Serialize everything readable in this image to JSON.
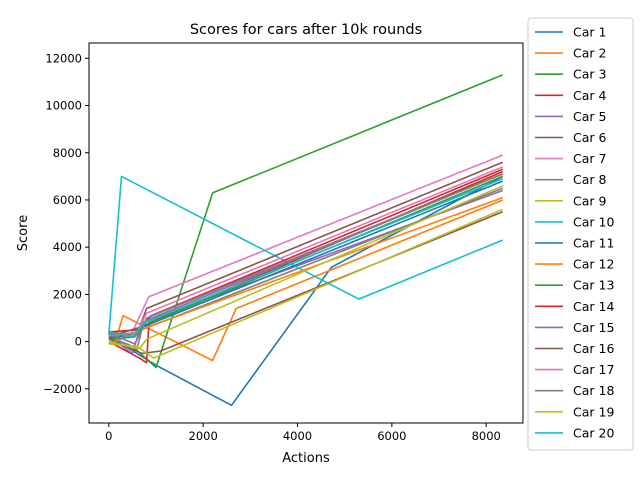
{
  "chart_data": {
    "type": "line",
    "title": "Scores for cars after 10k rounds",
    "xlabel": "Actions",
    "ylabel": "Score",
    "xlim": [
      -420,
      8780
    ],
    "ylim": [
      -3450,
      12650
    ],
    "xticks": [
      0,
      2000,
      4000,
      6000,
      8000
    ],
    "xtick_labels": [
      "0",
      "2000",
      "4000",
      "6000",
      "8000"
    ],
    "yticks": [
      -2000,
      0,
      2000,
      4000,
      6000,
      8000,
      10000,
      12000
    ],
    "ytick_labels": [
      "−2000",
      "0",
      "2000",
      "4000",
      "6000",
      "8000",
      "10000",
      "12000"
    ],
    "grid": false,
    "legend_position": "outside-right",
    "series": [
      {
        "name": "Car 1",
        "color": "#1f77b4",
        "points": [
          [
            0,
            200
          ],
          [
            350,
            -200
          ],
          [
            1000,
            -1000
          ],
          [
            2600,
            -2700
          ],
          [
            4720,
            3150
          ],
          [
            8350,
            7000
          ]
        ]
      },
      {
        "name": "Car 2",
        "color": "#ff7f0e",
        "points": [
          [
            0,
            300
          ],
          [
            200,
            400
          ],
          [
            300,
            1100
          ],
          [
            2200,
            -800
          ],
          [
            2700,
            1400
          ],
          [
            8350,
            6000
          ]
        ]
      },
      {
        "name": "Car 3",
        "color": "#2ca02c",
        "points": [
          [
            0,
            200
          ],
          [
            500,
            -200
          ],
          [
            1000,
            -1100
          ],
          [
            2200,
            6300
          ],
          [
            8350,
            11300
          ]
        ]
      },
      {
        "name": "Car 4",
        "color": "#d62728",
        "points": [
          [
            0,
            0
          ],
          [
            650,
            -700
          ],
          [
            800,
            -900
          ],
          [
            850,
            800
          ],
          [
            8350,
            7200
          ]
        ]
      },
      {
        "name": "Car 5",
        "color": "#9467bd",
        "points": [
          [
            0,
            200
          ],
          [
            500,
            -500
          ],
          [
            700,
            800
          ],
          [
            8350,
            6400
          ]
        ]
      },
      {
        "name": "Car 6",
        "color": "#8c564b",
        "points": [
          [
            0,
            100
          ],
          [
            700,
            -500
          ],
          [
            1100,
            -400
          ],
          [
            8350,
            5500
          ]
        ]
      },
      {
        "name": "Car 7",
        "color": "#e377c2",
        "points": [
          [
            0,
            300
          ],
          [
            450,
            200
          ],
          [
            850,
            1900
          ],
          [
            8350,
            7900
          ]
        ]
      },
      {
        "name": "Car 8",
        "color": "#7f7f7f",
        "points": [
          [
            0,
            200
          ],
          [
            600,
            -300
          ],
          [
            700,
            500
          ],
          [
            8350,
            6500
          ]
        ]
      },
      {
        "name": "Car 9",
        "color": "#bcbd22",
        "points": [
          [
            0,
            -100
          ],
          [
            600,
            -200
          ],
          [
            950,
            -700
          ],
          [
            8350,
            5600
          ]
        ]
      },
      {
        "name": "Car 10",
        "color": "#17becf",
        "points": [
          [
            0,
            300
          ],
          [
            270,
            7000
          ],
          [
            5300,
            1800
          ],
          [
            8350,
            4300
          ]
        ]
      },
      {
        "name": "Car 11",
        "color": "#1f77b4",
        "points": [
          [
            0,
            150
          ],
          [
            500,
            300
          ],
          [
            700,
            600
          ],
          [
            8350,
            6800
          ]
        ]
      },
      {
        "name": "Car 12",
        "color": "#ff7f0e",
        "points": [
          [
            0,
            -100
          ],
          [
            500,
            300
          ],
          [
            800,
            600
          ],
          [
            8350,
            6100
          ]
        ]
      },
      {
        "name": "Car 13",
        "color": "#2ca02c",
        "points": [
          [
            0,
            100
          ],
          [
            550,
            200
          ],
          [
            750,
            700
          ],
          [
            8350,
            7000
          ]
        ]
      },
      {
        "name": "Car 14",
        "color": "#d62728",
        "points": [
          [
            0,
            400
          ],
          [
            600,
            500
          ],
          [
            900,
            1100
          ],
          [
            8350,
            7300
          ]
        ]
      },
      {
        "name": "Car 15",
        "color": "#9467bd",
        "points": [
          [
            0,
            350
          ],
          [
            550,
            -100
          ],
          [
            800,
            900
          ],
          [
            8350,
            7100
          ]
        ]
      },
      {
        "name": "Car 16",
        "color": "#8c564b",
        "points": [
          [
            0,
            200
          ],
          [
            650,
            600
          ],
          [
            800,
            1400
          ],
          [
            8350,
            7600
          ]
        ]
      },
      {
        "name": "Car 17",
        "color": "#e377c2",
        "points": [
          [
            0,
            250
          ],
          [
            600,
            400
          ],
          [
            800,
            1200
          ],
          [
            8350,
            7400
          ]
        ]
      },
      {
        "name": "Car 18",
        "color": "#7f7f7f",
        "points": [
          [
            0,
            300
          ],
          [
            650,
            300
          ],
          [
            800,
            1000
          ],
          [
            8350,
            7100
          ]
        ]
      },
      {
        "name": "Car 19",
        "color": "#bcbd22",
        "points": [
          [
            0,
            0
          ],
          [
            650,
            -300
          ],
          [
            800,
            100
          ],
          [
            8350,
            6600
          ]
        ]
      },
      {
        "name": "Car 20",
        "color": "#17becf",
        "points": [
          [
            0,
            400
          ],
          [
            500,
            200
          ],
          [
            750,
            800
          ],
          [
            8350,
            6900
          ]
        ]
      }
    ]
  }
}
